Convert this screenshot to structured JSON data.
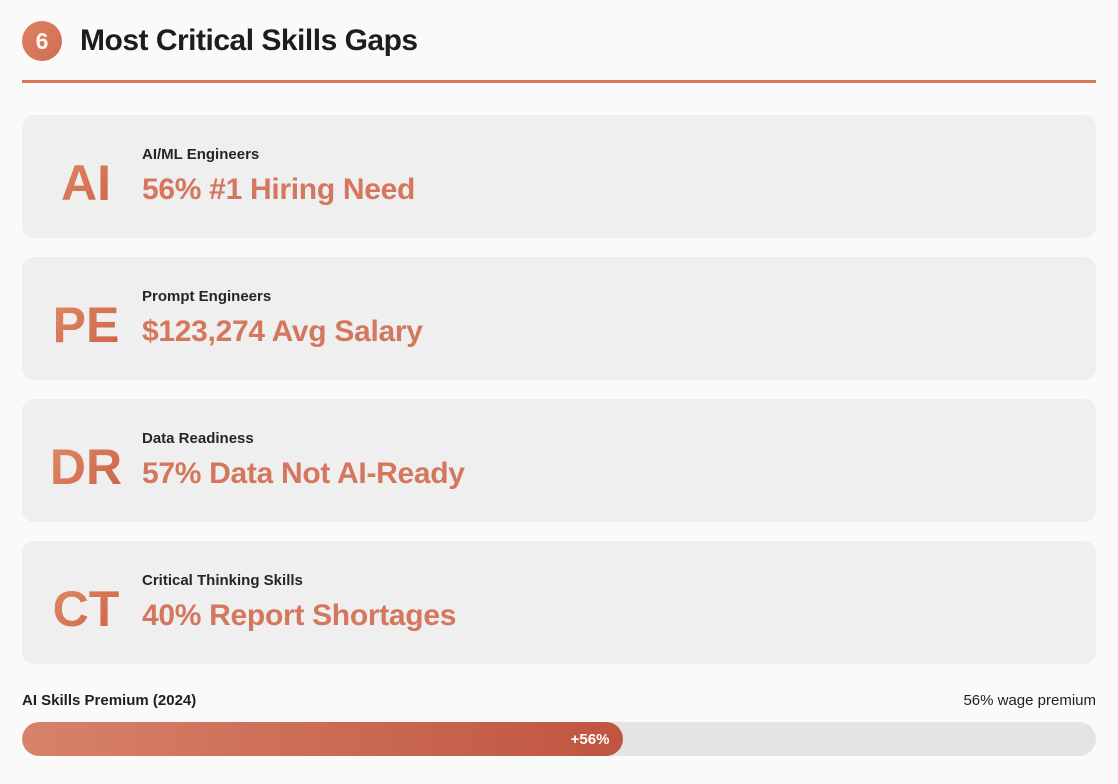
{
  "accent_color": "#d97757",
  "header": {
    "badge": "6",
    "title": "Most Critical Skills Gaps"
  },
  "cards": [
    {
      "abbr": "AI",
      "label": "AI/ML Engineers",
      "headline": "56% #1 Hiring Need"
    },
    {
      "abbr": "PE",
      "label": "Prompt Engineers",
      "headline": "$123,274 Avg Salary"
    },
    {
      "abbr": "DR",
      "label": "Data Readiness",
      "headline": "57% Data Not AI-Ready"
    },
    {
      "abbr": "CT",
      "label": "Critical Thinking Skills",
      "headline": "40% Report Shortages"
    }
  ],
  "progress": {
    "label": "AI Skills Premium (2024)",
    "right_label": "56% wage premium",
    "value_label": "+56%",
    "percent": 56
  },
  "chart_data": {
    "type": "bar",
    "title": "AI Skills Premium (2024)",
    "categories": [
      "AI Skills Premium (2024)"
    ],
    "values": [
      56
    ],
    "unit": "%",
    "xlim": [
      0,
      100
    ],
    "data_labels": [
      "+56%"
    ],
    "annotations": [
      "56% wage premium"
    ],
    "stats": [
      {
        "name": "AI/ML Engineers",
        "value": "56% #1 Hiring Need"
      },
      {
        "name": "Prompt Engineers",
        "value": "$123,274 Avg Salary"
      },
      {
        "name": "Data Readiness",
        "value": "57% Data Not AI-Ready"
      },
      {
        "name": "Critical Thinking Skills",
        "value": "40% Report Shortages"
      }
    ]
  }
}
